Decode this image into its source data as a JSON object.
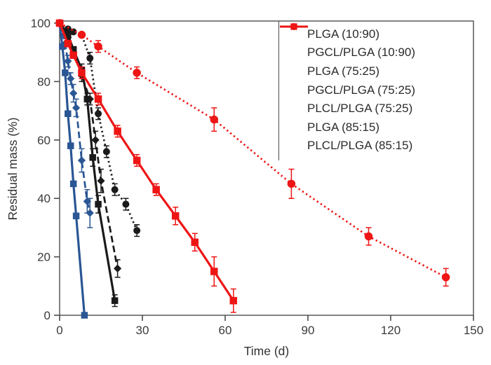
{
  "figure": {
    "background": "#ffffff",
    "axis_color": "#4c4c4c",
    "text_color": "#3a3a3a"
  },
  "chart_data": {
    "type": "line",
    "title": "",
    "xlabel": "Time (d)",
    "ylabel": "Residual mass (%)",
    "xlim": [
      0,
      150
    ],
    "ylim": [
      0,
      100
    ],
    "x_ticks": [
      0,
      30,
      60,
      90,
      120,
      150
    ],
    "y_ticks": [
      0,
      20,
      40,
      60,
      80,
      100
    ],
    "grid": false,
    "legend_position": "upper right",
    "series": [
      {
        "name": "PLGA (10:90)",
        "color": "#2a5694",
        "line_style": "solid",
        "marker": "square",
        "marker_size": 9.5,
        "x": [
          0,
          1,
          2,
          3,
          4,
          5,
          6,
          9
        ],
        "y": [
          100,
          92,
          83,
          69,
          58,
          45,
          34,
          0
        ],
        "yerr": [
          0,
          0,
          0,
          0,
          0,
          0,
          0,
          0
        ]
      },
      {
        "name": "PGCL/PLGA (10:90)",
        "color": "#2a5694",
        "line_style": "dashed",
        "marker": "diamond",
        "marker_size": 9.5,
        "x": [
          0,
          2,
          3,
          4,
          5,
          6,
          8,
          10,
          11
        ],
        "y": [
          100,
          93,
          87,
          81,
          76,
          71,
          53,
          39,
          35
        ],
        "yerr": [
          0,
          0,
          2,
          2,
          3,
          3,
          4,
          4,
          5
        ]
      },
      {
        "name": "PLGA (75:25)",
        "color": "#1a1a1a",
        "line_style": "solid",
        "marker": "square",
        "marker_size": 9.5,
        "x": [
          0,
          3,
          5,
          8,
          10,
          12,
          14,
          20
        ],
        "y": [
          100,
          96,
          91,
          84,
          74,
          54,
          38,
          5
        ],
        "yerr": [
          0,
          0,
          0,
          2,
          2,
          3,
          3,
          2
        ]
      },
      {
        "name": "PGCL/PLGA (75:25)",
        "color": "#1a1a1a",
        "line_style": "dashed",
        "marker": "diamond",
        "marker_size": 9.5,
        "x": [
          0,
          3,
          5,
          8,
          11,
          13,
          15,
          21
        ],
        "y": [
          100,
          95,
          90,
          82,
          74,
          60,
          46,
          16
        ],
        "yerr": [
          0,
          0,
          0,
          2,
          2,
          3,
          4,
          3
        ]
      },
      {
        "name": "PLCL/PLGA (75:25)",
        "color": "#1a1a1a",
        "line_style": "dotted",
        "marker": "circle",
        "marker_size": 10,
        "x": [
          0,
          3,
          5,
          8,
          11,
          14,
          17,
          20,
          24,
          28
        ],
        "y": [
          100,
          98,
          97,
          96,
          88,
          69,
          56,
          43,
          38,
          29
        ],
        "yerr": [
          0,
          0,
          0,
          0,
          2,
          2,
          2,
          2,
          2,
          2
        ]
      },
      {
        "name": "PLGA (85:15)",
        "color": "#ee1515",
        "line_style": "solid",
        "marker": "square",
        "marker_size": 10.5,
        "x": [
          0,
          3,
          5,
          8,
          14,
          21,
          28,
          35,
          42,
          49,
          56,
          63
        ],
        "y": [
          100,
          93,
          89,
          83,
          74,
          63,
          53,
          43,
          34,
          25,
          15,
          5
        ],
        "yerr": [
          0,
          0,
          0,
          2,
          2,
          2,
          2,
          2,
          3,
          3,
          5,
          4
        ]
      },
      {
        "name": "PLCL/PLGA (85:15)",
        "color": "#ee1515",
        "line_style": "dotted",
        "marker": "circle",
        "marker_size": 11.5,
        "x": [
          0,
          8,
          14,
          28,
          56,
          84,
          112,
          140
        ],
        "y": [
          100,
          96,
          92,
          83,
          67,
          45,
          27,
          13
        ],
        "yerr": [
          0,
          0,
          2,
          2,
          4,
          5,
          3,
          3
        ]
      }
    ]
  }
}
